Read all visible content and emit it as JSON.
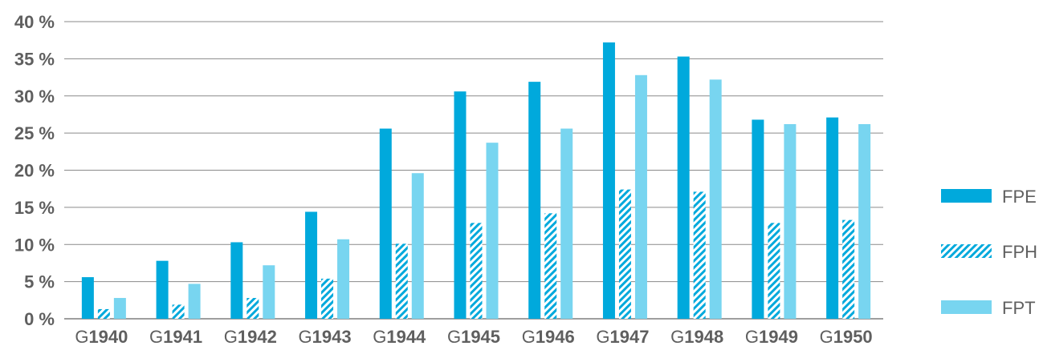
{
  "chart_data": {
    "type": "bar",
    "categories": [
      {
        "prefix": "G",
        "year": "1940"
      },
      {
        "prefix": "G",
        "year": "1941"
      },
      {
        "prefix": "G",
        "year": "1942"
      },
      {
        "prefix": "G",
        "year": "1943"
      },
      {
        "prefix": "G",
        "year": "1944"
      },
      {
        "prefix": "G",
        "year": "1945"
      },
      {
        "prefix": "G",
        "year": "1946"
      },
      {
        "prefix": "G",
        "year": "1947"
      },
      {
        "prefix": "G",
        "year": "1948"
      },
      {
        "prefix": "G",
        "year": "1949"
      },
      {
        "prefix": "G",
        "year": "1950"
      }
    ],
    "series": [
      {
        "name": "FPE",
        "pattern": "solid",
        "color": "#00a9dc",
        "values": [
          5.6,
          7.8,
          10.3,
          14.4,
          25.6,
          30.6,
          31.9,
          37.2,
          35.3,
          26.8,
          27.1
        ]
      },
      {
        "name": "FPH",
        "pattern": "hatched",
        "color": "#00a9dc",
        "values": [
          1.3,
          1.9,
          2.8,
          5.4,
          10.1,
          12.9,
          14.2,
          17.4,
          17.1,
          12.9,
          13.3
        ]
      },
      {
        "name": "FPT",
        "pattern": "solid",
        "color": "#78d5f0",
        "values": [
          2.8,
          4.7,
          7.2,
          10.7,
          19.6,
          23.7,
          25.6,
          32.8,
          32.2,
          26.2,
          26.2
        ]
      }
    ],
    "y_ticks": [
      "0 %",
      "5 %",
      "10 %",
      "15 %",
      "20 %",
      "25 %",
      "30 %",
      "35 %",
      "40 %"
    ],
    "ylim": [
      0,
      40
    ],
    "grid": true,
    "legend_position": "right",
    "title": "",
    "xlabel": "",
    "ylabel": ""
  }
}
